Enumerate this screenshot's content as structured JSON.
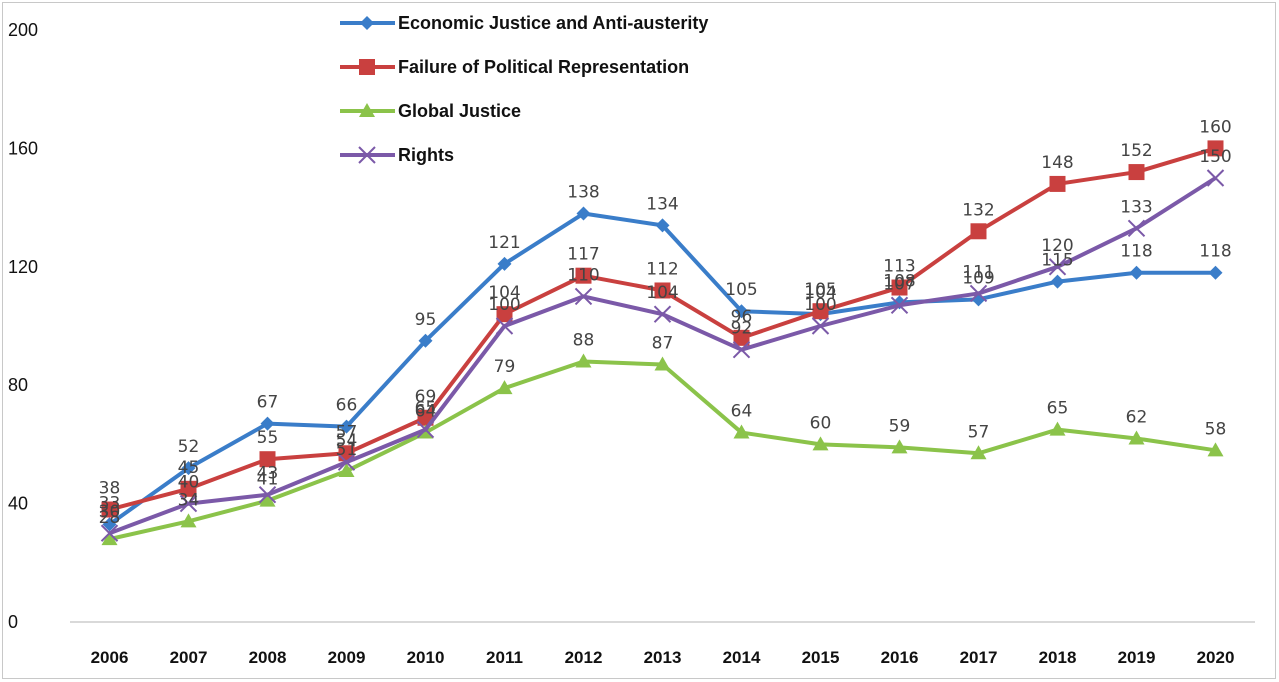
{
  "chart_data": {
    "type": "line",
    "title": "",
    "xlabel": "",
    "ylabel": "",
    "ylim": [
      0,
      200
    ],
    "yticks": [
      0,
      40,
      80,
      120,
      160,
      200
    ],
    "grid": false,
    "legend_position": "top-center",
    "categories": [
      "2006",
      "2007",
      "2008",
      "2009",
      "2010",
      "2011",
      "2012",
      "2013",
      "2014",
      "2015",
      "2016",
      "2017",
      "2018",
      "2019",
      "2020"
    ],
    "series": [
      {
        "name": "Economic Justice and Anti-austerity",
        "color": "#3a7dc9",
        "marker": "diamond",
        "values": [
          33,
          52,
          67,
          66,
          95,
          121,
          138,
          134,
          105,
          104,
          108,
          109,
          115,
          118,
          118
        ]
      },
      {
        "name": "Failure of Political Representation",
        "color": "#c9403f",
        "marker": "square",
        "values": [
          38,
          45,
          55,
          57,
          69,
          104,
          117,
          112,
          96,
          105,
          113,
          132,
          148,
          152,
          160
        ]
      },
      {
        "name": "Global Justice",
        "color": "#8bc34a",
        "marker": "triangle",
        "values": [
          28,
          34,
          41,
          51,
          64,
          79,
          88,
          87,
          64,
          60,
          59,
          57,
          65,
          62,
          58
        ]
      },
      {
        "name": "Rights",
        "color": "#7b59a8",
        "marker": "x",
        "values": [
          30,
          40,
          43,
          54,
          65,
          100,
          110,
          104,
          92,
          100,
          107,
          111,
          120,
          133,
          150
        ]
      }
    ]
  }
}
